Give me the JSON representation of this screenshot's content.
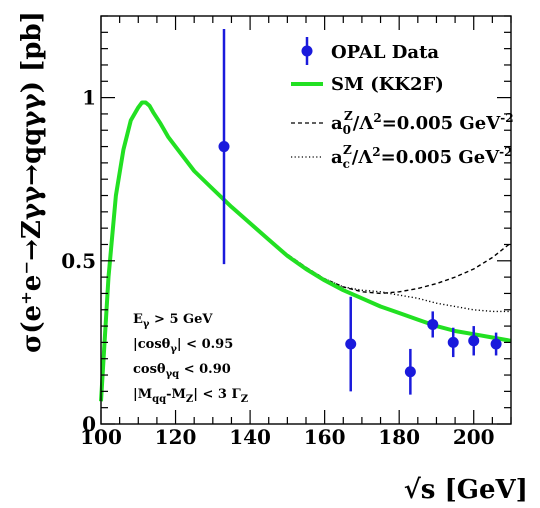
{
  "chart_data": {
    "type": "line",
    "xlabel": "√s [GeV]",
    "ylabel": "σ(e⁺e⁻→Zγγ→qqγγ) [pb]",
    "xlim": [
      100,
      210
    ],
    "ylim": [
      0,
      1.25
    ],
    "x_ticks": [
      100,
      120,
      140,
      160,
      180,
      200
    ],
    "x_tick_labels": [
      "100",
      "120",
      "140",
      "160",
      "180",
      "200"
    ],
    "y_ticks": [
      0,
      0.5,
      1
    ],
    "y_tick_labels": [
      "0",
      "0.5",
      "1"
    ],
    "grid": false,
    "legend_position": "top-right",
    "series": [
      {
        "name": "OPAL Data",
        "kind": "points",
        "color": "#1a1adc",
        "points": [
          {
            "x": 133,
            "y": 0.85,
            "yerr": 0.36
          },
          {
            "x": 167,
            "y": 0.245,
            "yerr": 0.145
          },
          {
            "x": 183,
            "y": 0.16,
            "yerr": 0.07
          },
          {
            "x": 189,
            "y": 0.305,
            "yerr": 0.04
          },
          {
            "x": 194.5,
            "y": 0.25,
            "yerr": 0.045
          },
          {
            "x": 200,
            "y": 0.255,
            "yerr": 0.045
          },
          {
            "x": 206,
            "y": 0.245,
            "yerr": 0.035
          }
        ]
      },
      {
        "name": "SM (KK2F)",
        "kind": "line",
        "color": "#22e022",
        "style": "solid",
        "x": [
          100,
          102,
          104,
          106,
          108,
          110,
          111,
          112,
          113,
          114,
          116,
          118,
          120,
          125,
          130,
          135,
          140,
          145,
          150,
          155,
          160,
          165,
          170,
          175,
          180,
          185,
          190,
          195,
          200,
          205,
          210
        ],
        "y": [
          0.07,
          0.45,
          0.7,
          0.84,
          0.93,
          0.97,
          0.985,
          0.985,
          0.975,
          0.955,
          0.92,
          0.88,
          0.85,
          0.775,
          0.72,
          0.665,
          0.615,
          0.565,
          0.515,
          0.475,
          0.44,
          0.41,
          0.385,
          0.36,
          0.34,
          0.32,
          0.3,
          0.285,
          0.275,
          0.265,
          0.255
        ]
      },
      {
        "name": "a0 = 0.005 GeV⁻²",
        "kind": "line",
        "color": "#000000",
        "style": "dashed",
        "x": [
          125,
          130,
          135,
          140,
          145,
          150,
          155,
          160,
          165,
          170,
          175,
          180,
          185,
          190,
          195,
          200,
          205,
          210
        ],
        "y": [
          0.775,
          0.72,
          0.665,
          0.615,
          0.565,
          0.52,
          0.48,
          0.445,
          0.42,
          0.405,
          0.4,
          0.405,
          0.415,
          0.43,
          0.45,
          0.475,
          0.51,
          0.555
        ]
      },
      {
        "name": "ac = 0.005 GeV⁻²",
        "kind": "line",
        "color": "#000000",
        "style": "dotted",
        "x": [
          125,
          130,
          135,
          140,
          145,
          150,
          155,
          160,
          165,
          170,
          175,
          180,
          185,
          190,
          195,
          200,
          205,
          210
        ],
        "y": [
          0.775,
          0.72,
          0.665,
          0.615,
          0.565,
          0.52,
          0.48,
          0.445,
          0.42,
          0.41,
          0.405,
          0.395,
          0.385,
          0.37,
          0.36,
          0.35,
          0.345,
          0.345
        ]
      }
    ],
    "legend": {
      "opal": "OPAL Data",
      "sm": "SM (KK2F)",
      "a0_base": "a",
      "a0_sub": "0",
      "ac_sub": "c",
      "z_sup": "Z",
      "coupling_mid": "/Λ",
      "two": "2",
      "value_text": "=0.005 GeV",
      "neg_two": "-2"
    },
    "cuts": {
      "line1_main": "E",
      "line1_sub": "γ",
      "line1_rest": " > 5 GeV",
      "line2_pre": "|cosθ",
      "line2_sub": "γ",
      "line2_rest": "| < 0.95",
      "line3_pre": "cosθ",
      "line3_sub": "γq",
      "line3_rest": " < 0.90",
      "line4_pre": "|M",
      "line4_sub1": "qq",
      "line4_mid": "-M",
      "line4_sub2": "Z",
      "line4_rest": "| < 3 Γ",
      "line4_sub3": "Z"
    }
  }
}
